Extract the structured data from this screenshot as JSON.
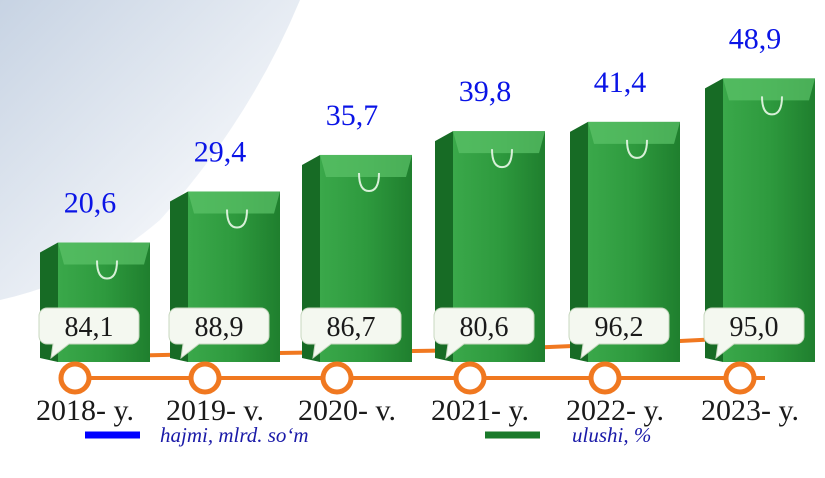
{
  "chart_data": {
    "type": "bar",
    "categories": [
      "2018- y.",
      "2019- v.",
      "2020- v.",
      "2021- y.",
      "2022- y.",
      "2023- y."
    ],
    "series": [
      {
        "name": "hajmi, mlrd. so‘m",
        "color": "#0000ff",
        "values": [
          20.6,
          29.4,
          35.7,
          39.8,
          41.4,
          48.9
        ],
        "value_labels": [
          "20,6",
          "29,4",
          "35,7",
          "39,8",
          "41,4",
          "48,9"
        ]
      },
      {
        "name": "ulushi, %",
        "color": "#1a7a2a",
        "values": [
          84.1,
          88.9,
          86.7,
          80.6,
          96.2,
          95.0
        ],
        "value_labels": [
          "84,1",
          "88,9",
          "86,7",
          "80,6",
          "96,2",
          "95,0"
        ]
      }
    ]
  }
}
